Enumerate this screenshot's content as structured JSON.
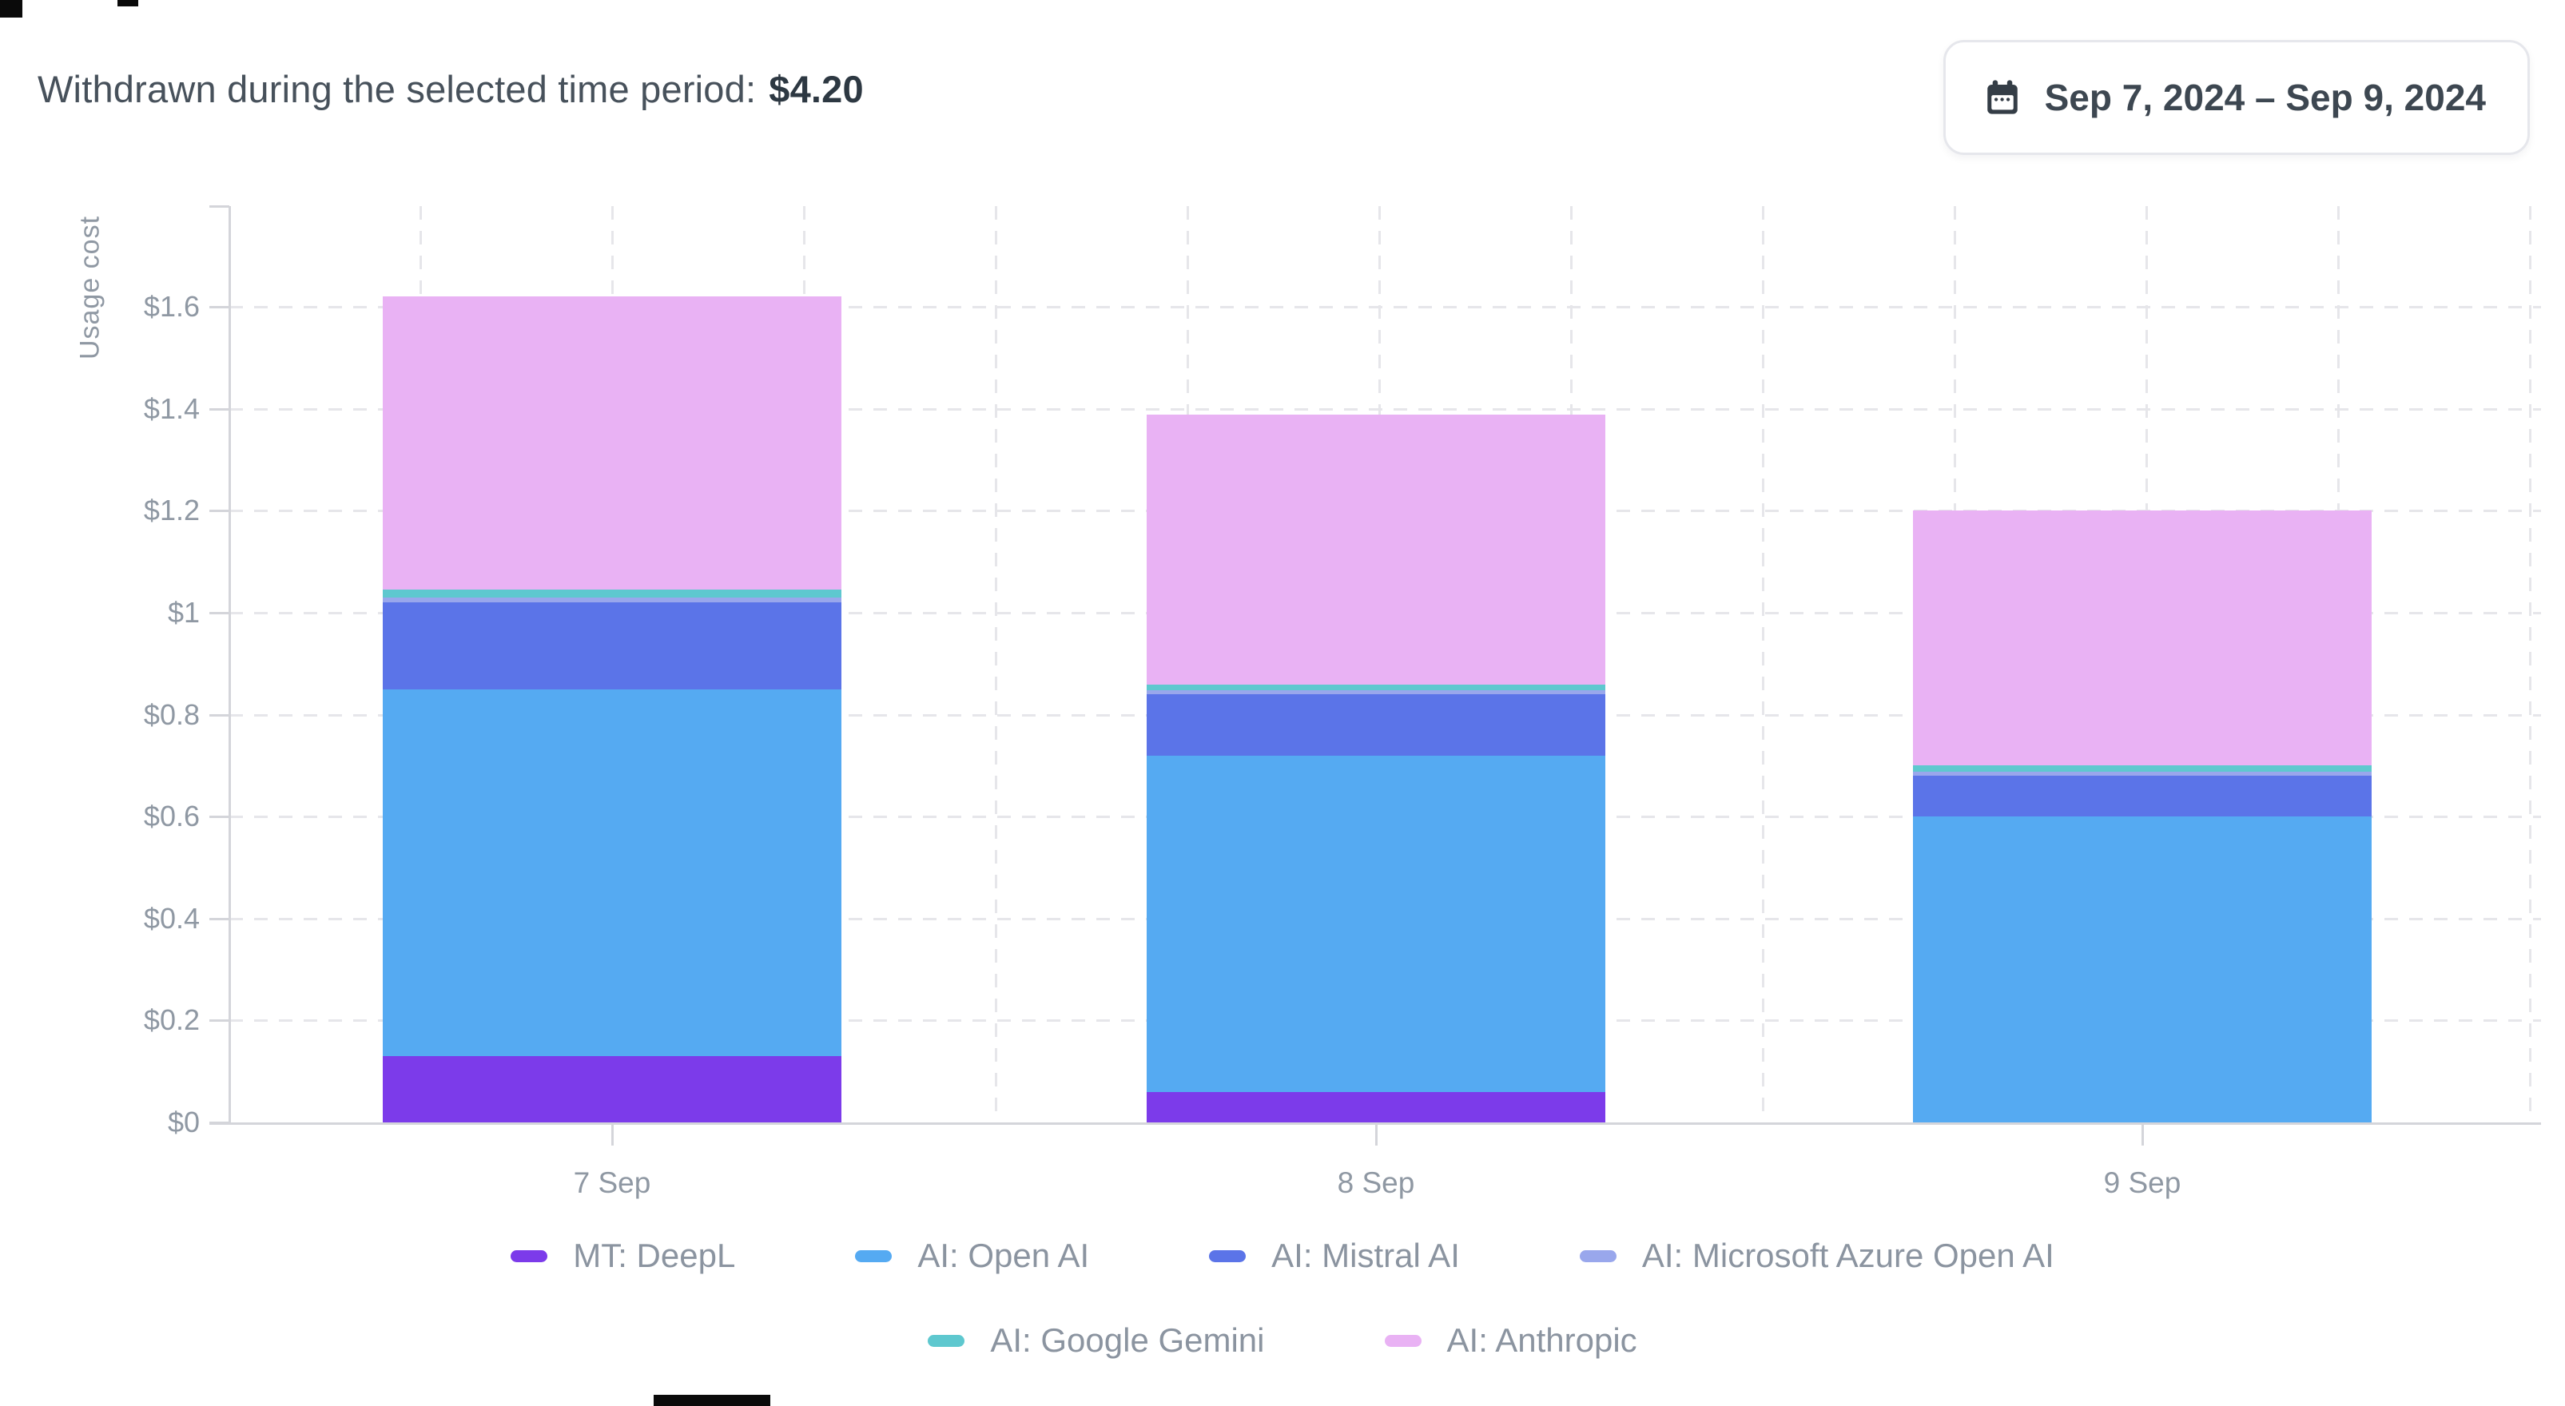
{
  "header": {
    "withdrawn_label": "Withdrawn during the selected time period:",
    "withdrawn_amount": "$4.20",
    "date_range": "Sep 7, 2024 – Sep 9, 2024"
  },
  "chart_data": {
    "type": "bar",
    "stacked": true,
    "ylabel": "Usage cost",
    "categories": [
      "7 Sep",
      "8 Sep",
      "9 Sep"
    ],
    "series": [
      {
        "name": "MT: DeepL",
        "color": "#7C3BEA",
        "values": [
          0.13,
          0.06,
          0
        ]
      },
      {
        "name": "AI: Open AI",
        "color": "#55AAF2",
        "values": [
          0.72,
          0.66,
          0.6
        ]
      },
      {
        "name": "AI: Mistral AI",
        "color": "#5B74E8",
        "values": [
          0.17,
          0.12,
          0.08
        ]
      },
      {
        "name": "AI: Microsoft Azure Open AI",
        "color": "#99A7EC",
        "values": [
          0.01,
          0.008,
          0.008
        ]
      },
      {
        "name": "AI: Google Gemini",
        "color": "#5EC8CF",
        "values": [
          0.015,
          0.011,
          0.012
        ]
      },
      {
        "name": "AI: Anthropic",
        "color": "#E9B2F4",
        "values": [
          0.575,
          0.53,
          0.5
        ]
      }
    ],
    "ytick_labels": [
      "$0",
      "$0.2",
      "$0.4",
      "$0.6",
      "$0.8",
      "$1",
      "$1.2",
      "$1.4",
      "$1.6"
    ],
    "ytick_values": [
      0,
      0.2,
      0.4,
      0.6,
      0.8,
      1.0,
      1.2,
      1.4,
      1.6
    ],
    "ylim": [
      0,
      1.79
    ],
    "grid": "dashed",
    "legend_position": "bottom",
    "legend_rows": [
      [
        0,
        1,
        2,
        3
      ],
      [
        4,
        5
      ]
    ]
  }
}
